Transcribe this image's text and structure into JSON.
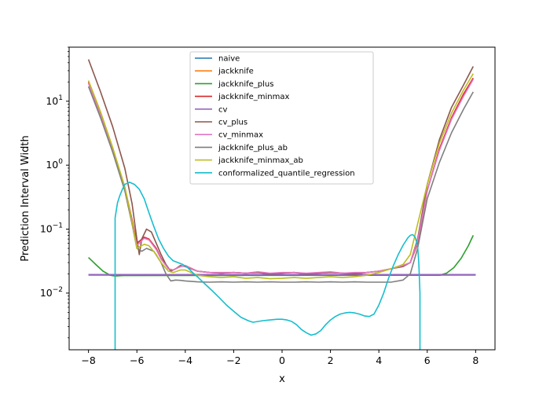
{
  "chart_data": {
    "type": "line",
    "xlabel": "x",
    "ylabel": "Prediction Interval Width",
    "yscale": "log",
    "xlim": [
      -8.8,
      8.8
    ],
    "ylim": [
      0.0013,
      70
    ],
    "xticks": [
      -8,
      -6,
      -4,
      -2,
      0,
      2,
      4,
      6,
      8
    ],
    "xtick_labels": [
      "−8",
      "−6",
      "−4",
      "−2",
      "0",
      "2",
      "4",
      "6",
      "8"
    ],
    "yticks": [
      0.01,
      0.1,
      1,
      10
    ],
    "ytick_labels": [
      {
        "base": "10",
        "exp": "−2"
      },
      {
        "base": "10",
        "exp": "−1"
      },
      {
        "base": "10",
        "exp": "0"
      },
      {
        "base": "10",
        "exp": "1"
      }
    ],
    "grid": false,
    "legend_position": "upper center",
    "series": [
      {
        "name": "naive",
        "color": "#1f77b4",
        "x": [
          -8,
          8
        ],
        "y": [
          0.0195,
          0.0195
        ]
      },
      {
        "name": "jackknife",
        "color": "#ff7f0e",
        "x": [
          -8,
          8
        ],
        "y": [
          0.019,
          0.019
        ]
      },
      {
        "name": "jackknife_plus",
        "color": "#2ca02c",
        "x": [
          -8,
          -7.7,
          -7.4,
          -7.1,
          -6.9,
          -6.6,
          6.5,
          6.8,
          7.1,
          7.4,
          7.7,
          7.9
        ],
        "y": [
          0.036,
          0.028,
          0.022,
          0.019,
          0.0185,
          0.0188,
          0.019,
          0.0205,
          0.025,
          0.035,
          0.055,
          0.08
        ]
      },
      {
        "name": "jackknife_minmax",
        "color": "#d62728",
        "x": [
          -8,
          -7.5,
          -7,
          -6.5,
          -6.2,
          -6.0,
          -5.7,
          -5.5,
          -5.2,
          -5.0,
          -4.7,
          -4.5,
          -4.2,
          -4.0,
          -3.5,
          -3,
          -2.5,
          -2,
          -1.5,
          -1,
          -0.5,
          0,
          0.5,
          1,
          1.5,
          2,
          2.5,
          3,
          3.5,
          4,
          4.5,
          5,
          5.3,
          5.6,
          6,
          6.5,
          7,
          7.5,
          7.9
        ],
        "y": [
          20,
          6.5,
          1.8,
          0.45,
          0.14,
          0.06,
          0.075,
          0.07,
          0.05,
          0.035,
          0.024,
          0.023,
          0.026,
          0.027,
          0.022,
          0.021,
          0.0205,
          0.021,
          0.0205,
          0.021,
          0.02,
          0.0205,
          0.021,
          0.02,
          0.0205,
          0.021,
          0.0205,
          0.02,
          0.021,
          0.022,
          0.024,
          0.027,
          0.03,
          0.06,
          0.4,
          1.8,
          5.5,
          13,
          23
        ]
      },
      {
        "name": "cv",
        "color": "#9467bd",
        "x": [
          -8,
          8
        ],
        "y": [
          0.0195,
          0.0195
        ]
      },
      {
        "name": "cv_plus",
        "color": "#8c564b",
        "x": [
          -8,
          -7.5,
          -7,
          -6.5,
          -6.2,
          -6.0,
          -5.9,
          -5.8,
          -5.6,
          -5.4,
          -5.2,
          -5.0,
          -4.8,
          -4.6,
          -4.4,
          -4.2,
          -4.0,
          -3.5,
          -3,
          -2.5,
          -2,
          -1.5,
          -1,
          -0.5,
          0,
          0.5,
          1,
          1.5,
          2,
          2.5,
          3,
          3.5,
          4,
          4.5,
          5,
          5.3,
          5.6,
          6,
          6.5,
          7,
          7.5,
          7.9
        ],
        "y": [
          45,
          14,
          4,
          0.9,
          0.25,
          0.07,
          0.04,
          0.07,
          0.1,
          0.09,
          0.06,
          0.04,
          0.028,
          0.022,
          0.024,
          0.027,
          0.026,
          0.022,
          0.021,
          0.0205,
          0.021,
          0.0205,
          0.021,
          0.02,
          0.0205,
          0.021,
          0.02,
          0.0205,
          0.021,
          0.0205,
          0.02,
          0.021,
          0.022,
          0.024,
          0.026,
          0.03,
          0.07,
          0.5,
          2.5,
          8,
          18,
          35
        ]
      },
      {
        "name": "cv_minmax",
        "color": "#e377c2",
        "x": [
          -8,
          -7.5,
          -7,
          -6.5,
          -6.2,
          -6.0,
          -5.7,
          -5.5,
          -5.2,
          -5.0,
          -4.7,
          -4.5,
          -4.2,
          -4.0,
          -3.5,
          -3,
          -2.5,
          -2,
          -1.5,
          -1,
          -0.5,
          0,
          0.5,
          1,
          1.5,
          2,
          2.5,
          3,
          3.5,
          4,
          4.5,
          5,
          5.3,
          5.6,
          6,
          6.5,
          7,
          7.5,
          7.9
        ],
        "y": [
          19,
          6,
          1.7,
          0.42,
          0.13,
          0.055,
          0.072,
          0.068,
          0.048,
          0.034,
          0.024,
          0.023,
          0.026,
          0.027,
          0.022,
          0.021,
          0.021,
          0.021,
          0.0205,
          0.0215,
          0.0205,
          0.021,
          0.021,
          0.0205,
          0.021,
          0.0215,
          0.0205,
          0.021,
          0.021,
          0.022,
          0.024,
          0.027,
          0.03,
          0.065,
          0.4,
          1.7,
          5.2,
          12,
          22
        ]
      },
      {
        "name": "jackknife_plus_ab",
        "color": "#7f7f7f",
        "x": [
          -8,
          -7.5,
          -7,
          -6.5,
          -6.2,
          -6.0,
          -5.8,
          -5.6,
          -5.3,
          -5.0,
          -4.8,
          -4.6,
          -4.4,
          -4.2,
          -4.0,
          -3.5,
          -3,
          -2.5,
          -2,
          -1.5,
          -1,
          -0.5,
          0,
          0.5,
          1,
          1.5,
          2,
          2.5,
          3,
          3.5,
          4,
          4.5,
          5,
          5.3,
          5.6,
          6,
          6.5,
          7,
          7.5,
          7.9
        ],
        "y": [
          17,
          5.5,
          1.6,
          0.4,
          0.12,
          0.05,
          0.045,
          0.05,
          0.045,
          0.03,
          0.02,
          0.0155,
          0.016,
          0.0158,
          0.0155,
          0.015,
          0.0148,
          0.015,
          0.0148,
          0.015,
          0.0148,
          0.015,
          0.0148,
          0.0148,
          0.015,
          0.0148,
          0.015,
          0.0148,
          0.015,
          0.0148,
          0.0148,
          0.0148,
          0.016,
          0.02,
          0.05,
          0.3,
          1.1,
          3.2,
          7.5,
          14
        ]
      },
      {
        "name": "jackknife_minmax_ab",
        "color": "#bcbd22",
        "x": [
          -8,
          -7.5,
          -7,
          -6.5,
          -6.2,
          -6.0,
          -5.7,
          -5.5,
          -5.2,
          -5.0,
          -4.7,
          -4.5,
          -4.2,
          -4.0,
          -3.5,
          -3,
          -2.5,
          -2,
          -1.5,
          -1,
          -0.5,
          0,
          0.5,
          1,
          1.5,
          2,
          2.5,
          3,
          3.5,
          4,
          4.5,
          5,
          5.3,
          5.6,
          6,
          6.5,
          7,
          7.5,
          7.9
        ],
        "y": [
          21,
          6.8,
          1.9,
          0.46,
          0.13,
          0.05,
          0.058,
          0.055,
          0.04,
          0.03,
          0.022,
          0.021,
          0.023,
          0.023,
          0.019,
          0.018,
          0.0175,
          0.018,
          0.017,
          0.0175,
          0.0168,
          0.017,
          0.0175,
          0.017,
          0.0175,
          0.018,
          0.0175,
          0.018,
          0.019,
          0.021,
          0.024,
          0.028,
          0.04,
          0.12,
          0.5,
          2.2,
          6.5,
          15,
          27
        ]
      },
      {
        "name": "conformalized_quantile_regression",
        "color": "#17becf",
        "x": [
          -6.9,
          -6.9,
          -6.85,
          -6.8,
          -6.7,
          -6.6,
          -6.5,
          -6.3,
          -6.1,
          -5.9,
          -5.7,
          -5.5,
          -5.3,
          -5.1,
          -4.9,
          -4.7,
          -4.5,
          -4.3,
          -4.1,
          -3.9,
          -3.7,
          -3.5,
          -3.2,
          -2.9,
          -2.6,
          -2.3,
          -2.0,
          -1.7,
          -1.4,
          -1.2,
          -1.0,
          -0.8,
          -0.5,
          -0.2,
          0.0,
          0.2,
          0.4,
          0.6,
          0.8,
          1.0,
          1.2,
          1.4,
          1.6,
          1.8,
          2.0,
          2.2,
          2.4,
          2.6,
          2.8,
          3.0,
          3.2,
          3.4,
          3.6,
          3.8,
          4.0,
          4.2,
          4.4,
          4.6,
          4.8,
          5.0,
          5.2,
          5.3,
          5.4,
          5.5,
          5.6,
          5.65,
          5.7,
          5.7
        ],
        "y": [
          0.0012,
          0.15,
          0.2,
          0.26,
          0.34,
          0.42,
          0.5,
          0.54,
          0.5,
          0.42,
          0.3,
          0.18,
          0.11,
          0.07,
          0.05,
          0.038,
          0.032,
          0.03,
          0.028,
          0.025,
          0.021,
          0.018,
          0.014,
          0.011,
          0.0085,
          0.0065,
          0.0052,
          0.0042,
          0.0037,
          0.0035,
          0.0036,
          0.0037,
          0.0038,
          0.0039,
          0.0039,
          0.0038,
          0.0036,
          0.0032,
          0.0027,
          0.0024,
          0.0022,
          0.0023,
          0.0026,
          0.0032,
          0.0038,
          0.0043,
          0.0047,
          0.0049,
          0.005,
          0.0049,
          0.0047,
          0.0044,
          0.0043,
          0.0047,
          0.0065,
          0.01,
          0.017,
          0.027,
          0.04,
          0.056,
          0.073,
          0.08,
          0.082,
          0.075,
          0.055,
          0.03,
          0.01,
          0.0012
        ]
      }
    ]
  }
}
